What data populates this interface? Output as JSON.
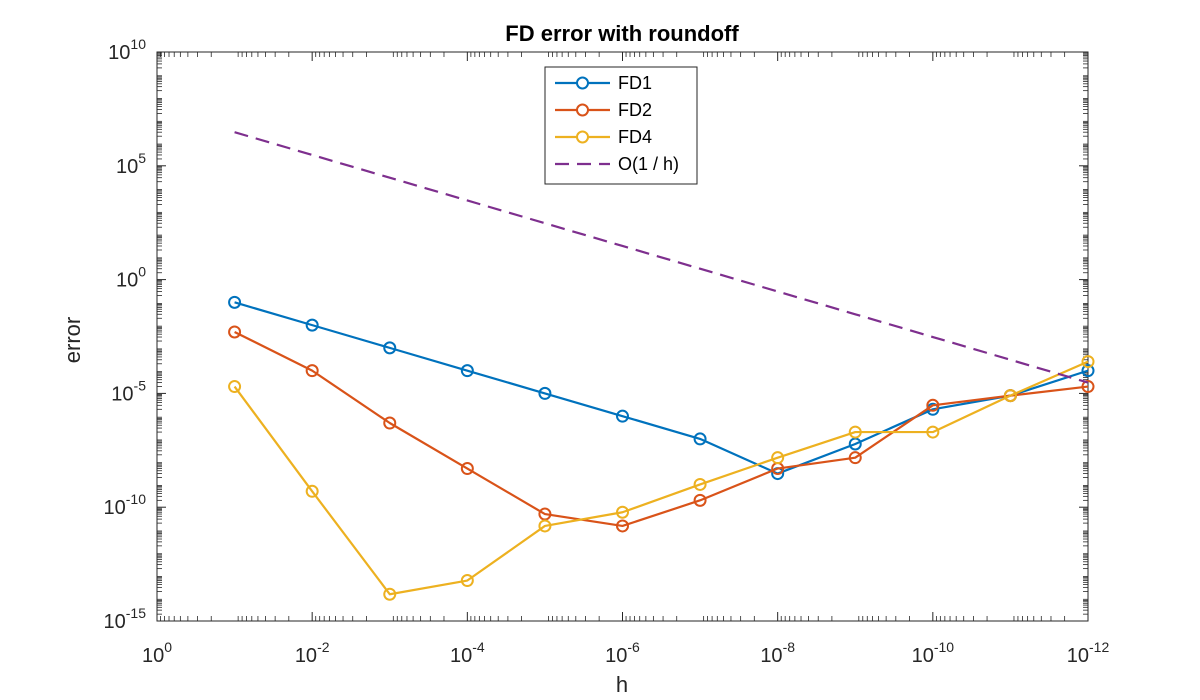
{
  "chart_data": {
    "type": "line",
    "title": "FD error with roundoff",
    "xlabel": "h",
    "ylabel": "error",
    "x_scale": "log",
    "y_scale": "log",
    "x_reversed": true,
    "xlim": [
      1,
      1e-12
    ],
    "ylim": [
      1e-15,
      10000000000.0
    ],
    "x_ticks": [
      {
        "value": 1,
        "base": "10",
        "exp": "0"
      },
      {
        "value": 0.01,
        "base": "10",
        "exp": "-2"
      },
      {
        "value": 0.0001,
        "base": "10",
        "exp": "-4"
      },
      {
        "value": 1e-06,
        "base": "10",
        "exp": "-6"
      },
      {
        "value": 1e-08,
        "base": "10",
        "exp": "-8"
      },
      {
        "value": 1e-10,
        "base": "10",
        "exp": "-10"
      },
      {
        "value": 1e-12,
        "base": "10",
        "exp": "-12"
      }
    ],
    "y_ticks": [
      {
        "value": 1e-15,
        "base": "10",
        "exp": "-15"
      },
      {
        "value": 1e-10,
        "base": "10",
        "exp": "-10"
      },
      {
        "value": 1e-05,
        "base": "10",
        "exp": "-5"
      },
      {
        "value": 1,
        "base": "10",
        "exp": "0"
      },
      {
        "value": 100000.0,
        "base": "10",
        "exp": "5"
      },
      {
        "value": 10000000000.0,
        "base": "10",
        "exp": "10"
      }
    ],
    "x": [
      0.1,
      0.01,
      0.001,
      0.0001,
      1e-05,
      1e-06,
      1e-07,
      1e-08,
      1e-09,
      1e-10,
      1e-11,
      1e-12
    ],
    "series": [
      {
        "name": "FD1",
        "color": "#0072BD",
        "marker": "circle",
        "dash": "solid",
        "values": [
          0.1,
          0.01,
          0.001,
          0.0001,
          1e-05,
          1e-06,
          1e-07,
          3e-09,
          6e-08,
          2e-06,
          8e-06,
          0.0001
        ]
      },
      {
        "name": "FD2",
        "color": "#D95319",
        "marker": "circle",
        "dash": "solid",
        "values": [
          0.005,
          0.0001,
          5e-07,
          5e-09,
          5e-11,
          1.5e-11,
          2e-10,
          5e-09,
          1.5e-08,
          3e-06,
          8e-06,
          2e-05
        ]
      },
      {
        "name": "FD4",
        "color": "#EDB120",
        "marker": "circle",
        "dash": "solid",
        "values": [
          2e-05,
          5e-10,
          1.5e-14,
          6e-14,
          1.5e-11,
          6e-11,
          1e-09,
          1.5e-08,
          2e-07,
          2e-07,
          8e-06,
          0.00025
        ]
      },
      {
        "name": "O(1 / h)",
        "color": "#7E2F8E",
        "marker": "none",
        "dash": "dashed",
        "values": [
          3000000.0,
          300000.0,
          30000.0,
          3000.0,
          300,
          30,
          3,
          0.3,
          0.03,
          0.003,
          0.0003,
          3e-05
        ]
      }
    ],
    "grid": false,
    "legend_position": "top-center"
  }
}
